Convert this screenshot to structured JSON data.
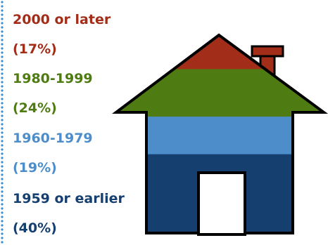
{
  "chart_data": {
    "type": "stacked-area",
    "segments": [
      {
        "label": "2000 or later",
        "share_label": "(17%)",
        "value": 17,
        "color": "#a22d19"
      },
      {
        "label": "1980-1999",
        "share_label": "(24%)",
        "value": 24,
        "color": "#4f7c12"
      },
      {
        "label": "1960-1979",
        "share_label": "(19%)",
        "value": 19,
        "color": "#4d8dc9"
      },
      {
        "label": "1959 or earlier",
        "share_label": "(40%)",
        "value": 40,
        "color": "#143f6f"
      }
    ]
  },
  "colors": {
    "house_outline": "#000000",
    "chimney": "#a22d19",
    "door": "#ffffff",
    "dotted_border": "#3a8fd0"
  }
}
